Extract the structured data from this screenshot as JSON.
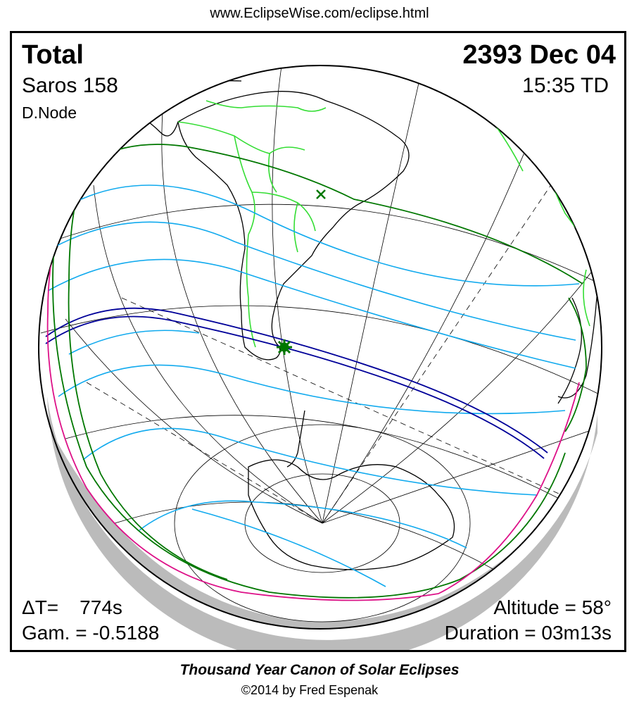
{
  "header": {
    "url": "www.EclipseWise.com/eclipse.html"
  },
  "eclipse": {
    "type": "Total",
    "date": "2393 Dec 04",
    "saros": "Saros 158",
    "time": "15:35 TD",
    "node": "D.Node",
    "delta_t_label": "ΔT=",
    "delta_t_value": "774s",
    "gamma": "Gam. = -0.5188",
    "altitude": "Altitude = 58°",
    "duration": "Duration = 03m13s"
  },
  "footer": {
    "title": "Thousand Year Canon of Solar Eclipses",
    "credit": "©2014 by Fred Espenak"
  },
  "colors": {
    "globe_outline": "#000000",
    "graticule": "#000000",
    "coastline": "#000000",
    "borders": "#33dd33",
    "penumbra_limits": "#007700",
    "partial_curves": "#11aaee",
    "central_path": "#000099",
    "sunrise_sunset": "#dd1188",
    "night_shadow": "#bbbbbb"
  },
  "markers": {
    "greatest_eclipse": "star-marker",
    "subsolar_point": "x-marker"
  }
}
